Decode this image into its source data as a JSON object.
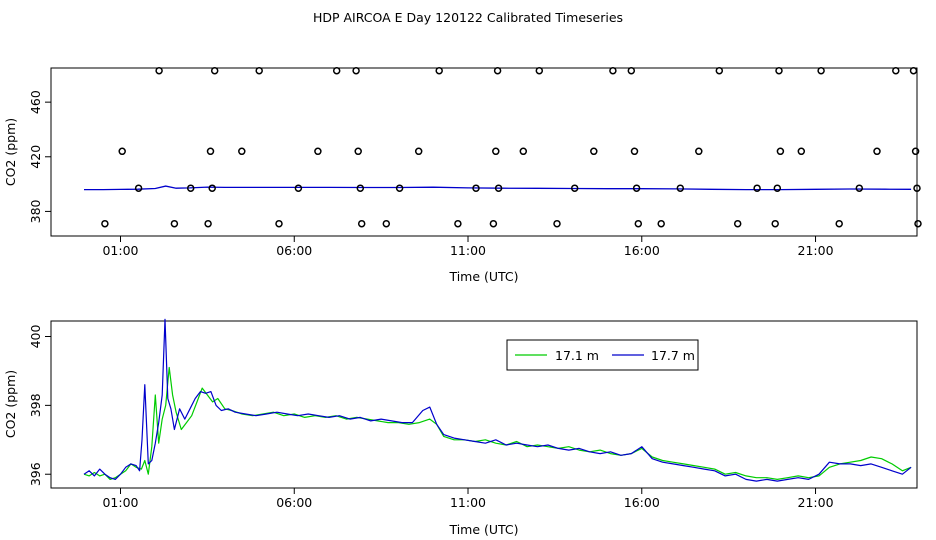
{
  "title": "HDP AIRCOA E  Day 120122  Calibrated Timeseries",
  "colors": {
    "axis": "#000000",
    "series_17_1": "#00cc00",
    "series_17_7": "#0000cc",
    "background": "#ffffff"
  },
  "chart_data": [
    {
      "type": "scatter",
      "panel": "top",
      "xlabel": "Time (UTC)",
      "ylabel": "CO2 (ppm)",
      "xlim": [
        -1.0,
        23.92
      ],
      "ylim": [
        362,
        485
      ],
      "x_ticks": [
        1,
        6,
        11,
        16,
        21
      ],
      "x_tick_labels": [
        "01:00",
        "06:00",
        "11:00",
        "16:00",
        "21:00"
      ],
      "y_ticks": [
        380,
        420,
        460
      ],
      "y_tick_labels": [
        "380",
        "420",
        "460"
      ],
      "grid": false,
      "legend": "none",
      "line": {
        "x": [
          -0.05,
          0.5,
          1.0,
          1.5,
          2.0,
          2.3,
          2.6,
          3.0,
          3.5,
          4.0,
          5.0,
          6.0,
          7.0,
          8.0,
          9.0,
          10.0,
          11.0,
          12.0,
          13.0,
          14.0,
          15.0,
          16.0,
          17.0,
          18.0,
          19.0,
          20.0,
          21.0,
          22.0,
          23.0,
          23.75
        ],
        "values": [
          396.0,
          396.0,
          396.1,
          396.3,
          396.8,
          398.5,
          397.0,
          397.2,
          397.8,
          397.6,
          397.6,
          397.6,
          397.6,
          397.5,
          397.5,
          397.7,
          397.2,
          397.0,
          396.9,
          396.8,
          396.6,
          396.6,
          396.5,
          396.2,
          396.0,
          396.0,
          396.2,
          396.4,
          396.3,
          396.2
        ]
      },
      "points": {
        "x": [
          0.55,
          1.52,
          1.05,
          2.11,
          2.55,
          3.02,
          3.52,
          3.59,
          3.64,
          3.71,
          4.49,
          4.99,
          5.56,
          6.12,
          6.68,
          7.22,
          7.78,
          7.84,
          7.9,
          7.94,
          8.65,
          9.03,
          9.58,
          10.17,
          10.71,
          11.23,
          11.73,
          11.8,
          11.85,
          11.88,
          12.59,
          13.05,
          13.56,
          14.07,
          14.62,
          15.17,
          15.7,
          15.79,
          15.85,
          15.9,
          16.56,
          17.11,
          17.64,
          18.23,
          18.76,
          19.32,
          19.84,
          19.9,
          19.95,
          19.99,
          20.59,
          21.16,
          21.68,
          22.26,
          22.77,
          23.31,
          23.82,
          23.88,
          23.92,
          23.95
        ],
        "y": [
          371,
          397,
          424,
          483,
          371,
          397,
          371,
          424,
          397,
          483,
          424,
          483,
          371,
          397,
          424,
          483,
          483,
          424,
          397,
          371,
          371,
          397,
          424,
          483,
          371,
          397,
          371,
          424,
          483,
          397,
          424,
          483,
          371,
          397,
          424,
          483,
          483,
          424,
          397,
          371,
          371,
          397,
          424,
          483,
          371,
          397,
          371,
          397,
          483,
          424,
          424,
          483,
          371,
          397,
          424,
          483,
          483,
          424,
          397,
          371
        ]
      }
    },
    {
      "type": "line",
      "panel": "bottom",
      "xlabel": "Time (UTC)",
      "ylabel": "CO2 (ppm)",
      "xlim": [
        -1.0,
        23.92
      ],
      "ylim": [
        395.6,
        400.45
      ],
      "x_ticks": [
        1,
        6,
        11,
        16,
        21
      ],
      "x_tick_labels": [
        "01:00",
        "06:00",
        "11:00",
        "16:00",
        "21:00"
      ],
      "y_ticks": [
        396,
        398,
        400
      ],
      "y_tick_labels": [
        "396",
        "398",
        "400"
      ],
      "grid": false,
      "legend": "top-center",
      "series": [
        {
          "name": "17.1 m",
          "x": [
            -0.05,
            0.1,
            0.25,
            0.4,
            0.55,
            0.7,
            0.85,
            1.0,
            1.15,
            1.3,
            1.45,
            1.6,
            1.7,
            1.8,
            1.9,
            2.0,
            2.1,
            2.2,
            2.3,
            2.4,
            2.5,
            2.6,
            2.75,
            2.9,
            3.05,
            3.2,
            3.35,
            3.5,
            3.65,
            3.8,
            4.0,
            4.2,
            4.5,
            4.8,
            5.1,
            5.4,
            5.7,
            6.0,
            6.3,
            6.6,
            6.9,
            7.2,
            7.5,
            7.8,
            8.1,
            8.4,
            8.7,
            9.0,
            9.3,
            9.6,
            9.9,
            10.1,
            10.3,
            10.6,
            10.9,
            11.2,
            11.5,
            11.8,
            12.1,
            12.4,
            12.7,
            13.0,
            13.3,
            13.6,
            13.9,
            14.2,
            14.5,
            14.8,
            15.1,
            15.4,
            15.7,
            16.0,
            16.3,
            16.6,
            16.9,
            17.2,
            17.5,
            17.8,
            18.1,
            18.4,
            18.7,
            19.0,
            19.3,
            19.6,
            19.9,
            20.2,
            20.5,
            20.8,
            21.1,
            21.4,
            21.7,
            22.0,
            22.3,
            22.6,
            22.9,
            23.2,
            23.5,
            23.75
          ],
          "values": [
            396.0,
            395.95,
            396.05,
            395.95,
            396.0,
            395.85,
            395.9,
            396.0,
            396.1,
            396.3,
            396.2,
            396.15,
            396.4,
            396.0,
            396.8,
            398.3,
            396.9,
            397.6,
            398.0,
            399.1,
            398.3,
            397.8,
            397.3,
            397.5,
            397.7,
            398.1,
            398.5,
            398.3,
            398.1,
            398.2,
            397.9,
            397.85,
            397.75,
            397.7,
            397.75,
            397.8,
            397.7,
            397.75,
            397.65,
            397.7,
            397.65,
            397.7,
            397.6,
            397.65,
            397.6,
            397.55,
            397.5,
            397.5,
            397.45,
            397.5,
            397.6,
            397.45,
            397.1,
            397.0,
            397.0,
            396.95,
            397.0,
            396.9,
            396.85,
            396.95,
            396.8,
            396.85,
            396.8,
            396.75,
            396.8,
            396.7,
            396.65,
            396.7,
            396.6,
            396.55,
            396.6,
            396.75,
            396.5,
            396.4,
            396.35,
            396.3,
            396.25,
            396.2,
            396.15,
            396.0,
            396.05,
            395.95,
            395.9,
            395.9,
            395.85,
            395.9,
            395.95,
            395.9,
            395.95,
            396.2,
            396.3,
            396.35,
            396.4,
            396.5,
            396.45,
            396.3,
            396.1,
            396.2
          ]
        },
        {
          "name": "17.7 m",
          "x": [
            -0.05,
            0.1,
            0.25,
            0.4,
            0.55,
            0.7,
            0.85,
            1.0,
            1.15,
            1.3,
            1.45,
            1.55,
            1.62,
            1.7,
            1.8,
            1.9,
            2.0,
            2.1,
            2.2,
            2.28,
            2.36,
            2.45,
            2.55,
            2.7,
            2.85,
            3.0,
            3.15,
            3.3,
            3.45,
            3.6,
            3.75,
            3.9,
            4.1,
            4.3,
            4.6,
            4.9,
            5.2,
            5.5,
            5.8,
            6.1,
            6.4,
            6.7,
            7.0,
            7.3,
            7.6,
            7.9,
            8.2,
            8.5,
            8.8,
            9.1,
            9.4,
            9.7,
            9.9,
            10.1,
            10.3,
            10.6,
            10.9,
            11.2,
            11.5,
            11.8,
            12.1,
            12.4,
            12.7,
            13.0,
            13.3,
            13.6,
            13.9,
            14.2,
            14.5,
            14.8,
            15.1,
            15.4,
            15.7,
            16.0,
            16.3,
            16.6,
            16.9,
            17.2,
            17.5,
            17.8,
            18.1,
            18.4,
            18.7,
            19.0,
            19.3,
            19.6,
            19.9,
            20.2,
            20.5,
            20.8,
            21.1,
            21.4,
            21.7,
            22.0,
            22.3,
            22.6,
            22.9,
            23.2,
            23.5,
            23.75
          ],
          "values": [
            396.0,
            396.1,
            395.95,
            396.15,
            396.0,
            395.9,
            395.85,
            396.0,
            396.2,
            396.3,
            396.25,
            396.1,
            397.0,
            398.6,
            396.3,
            396.4,
            396.9,
            397.5,
            398.3,
            400.5,
            398.2,
            397.9,
            397.3,
            397.9,
            397.6,
            397.9,
            398.2,
            398.4,
            398.35,
            398.4,
            398.0,
            397.85,
            397.9,
            397.8,
            397.75,
            397.7,
            397.75,
            397.8,
            397.75,
            397.7,
            397.75,
            397.7,
            397.65,
            397.7,
            397.6,
            397.65,
            397.55,
            397.6,
            397.55,
            397.5,
            397.5,
            397.85,
            397.95,
            397.45,
            397.15,
            397.05,
            397.0,
            396.95,
            396.9,
            397.0,
            396.85,
            396.9,
            396.85,
            396.8,
            396.85,
            396.75,
            396.7,
            396.75,
            396.65,
            396.6,
            396.65,
            396.55,
            396.6,
            396.8,
            396.45,
            396.35,
            396.3,
            396.25,
            396.2,
            396.15,
            396.1,
            395.95,
            396.0,
            395.85,
            395.8,
            395.85,
            395.8,
            395.85,
            395.9,
            395.85,
            396.0,
            396.35,
            396.3,
            396.3,
            396.25,
            396.3,
            396.2,
            396.1,
            396.0,
            396.2
          ]
        }
      ]
    }
  ]
}
